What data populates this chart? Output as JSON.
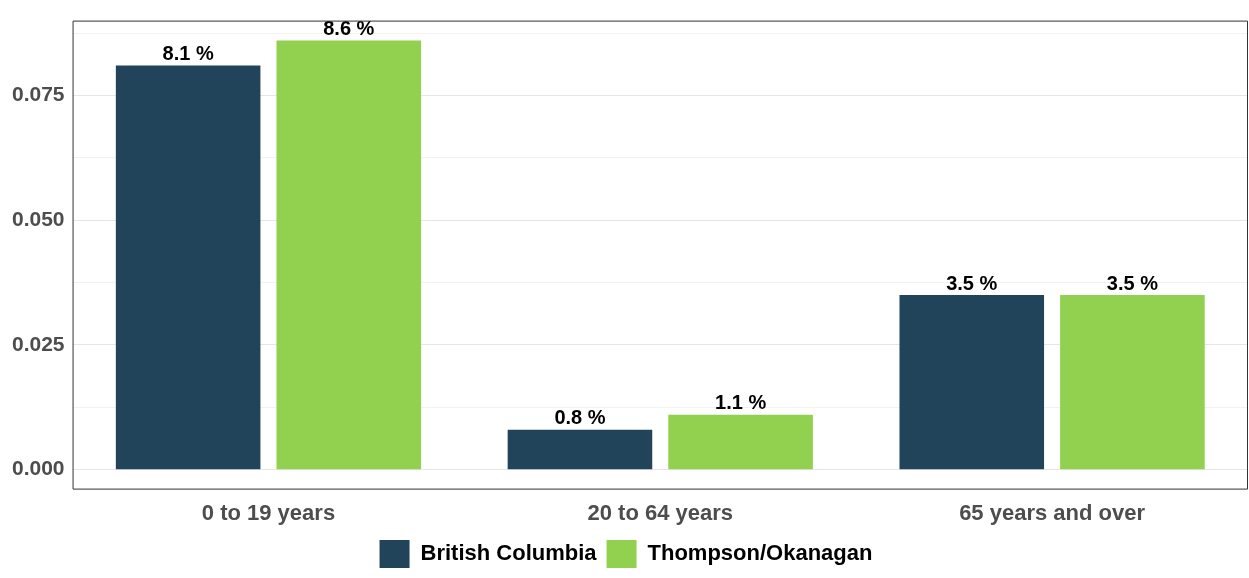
{
  "chart_data": {
    "type": "bar",
    "categories": [
      "0 to 19 years",
      "20 to 64 years",
      "65 years and over"
    ],
    "series": [
      {
        "name": "British Columbia",
        "color": "#21445b",
        "values": [
          0.081,
          0.008,
          0.035
        ],
        "value_labels": [
          "8.1 %",
          "0.8 %",
          "3.5 %"
        ]
      },
      {
        "name": "Thompson/Okanagan",
        "color": "#92d050",
        "values": [
          0.086,
          0.011,
          0.035
        ],
        "value_labels": [
          "8.6 %",
          "1.1 %",
          "3.5 %"
        ]
      }
    ],
    "ylim": [
      -0.004,
      0.09
    ],
    "yticks": [
      {
        "value": 0,
        "label": "0.000"
      },
      {
        "value": 0.0125,
        "label": null
      },
      {
        "value": 0.025,
        "label": "0.025"
      },
      {
        "value": 0.0375,
        "label": null
      },
      {
        "value": 0.05,
        "label": "0.050"
      },
      {
        "value": 0.0625,
        "label": null
      },
      {
        "value": 0.075,
        "label": "0.075"
      },
      {
        "value": 0.0875,
        "label": null
      }
    ],
    "grid": "y",
    "legend": "bottom"
  }
}
